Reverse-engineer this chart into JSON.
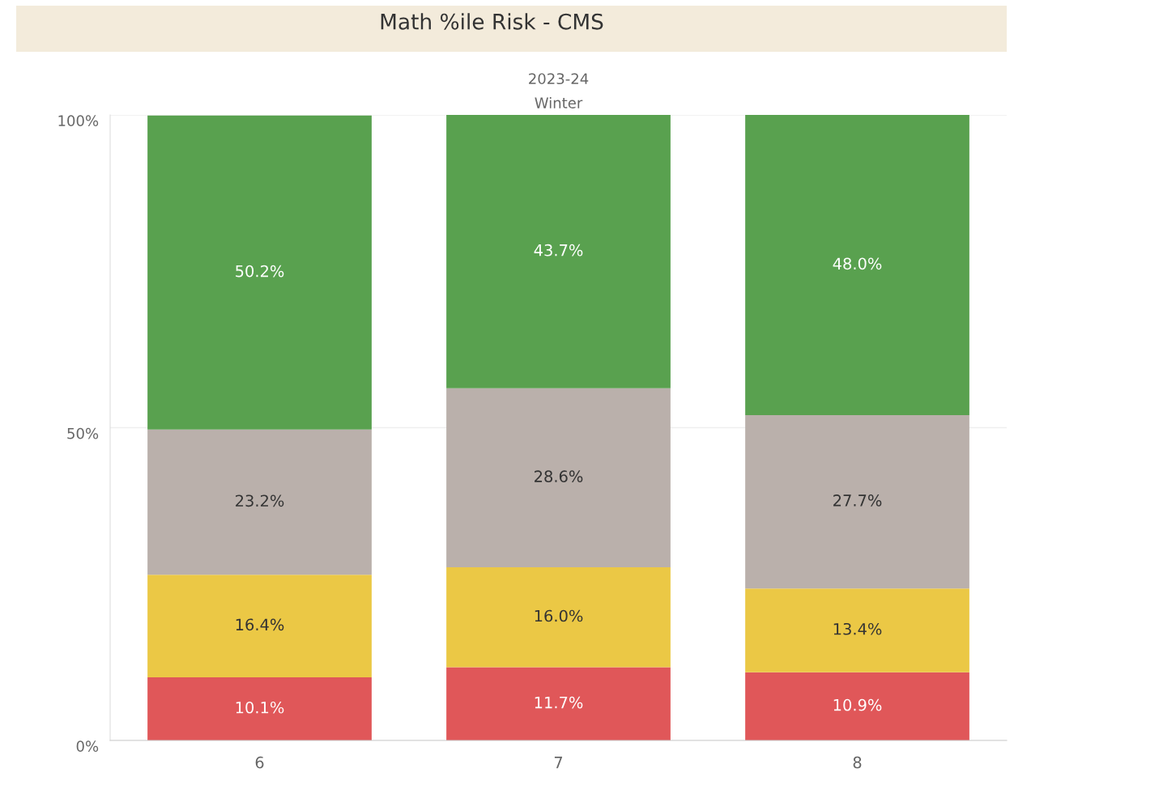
{
  "chart_data": {
    "type": "bar",
    "title": "Math %ile Risk - CMS",
    "subtitle": "2023-24\nWinter",
    "categories": [
      "6",
      "7",
      "8"
    ],
    "stacked": true,
    "data_labels": true,
    "grid": "y",
    "ylim": [
      0,
      100
    ],
    "yticks": [
      {
        "value": 0,
        "label": "0%"
      },
      {
        "value": 50,
        "label": "50%"
      },
      {
        "value": 100,
        "label": "100%"
      }
    ],
    "series": [
      {
        "color": "#e05759",
        "values": [
          10.1,
          11.7,
          10.9
        ],
        "value_labels": [
          "10.1%",
          "11.7%",
          "10.9%"
        ]
      },
      {
        "color": "#ebc845",
        "values": [
          16.4,
          16.0,
          13.4
        ],
        "value_labels": [
          "16.4%",
          "16.0%",
          "13.4%"
        ]
      },
      {
        "color": "#bab0ab",
        "values": [
          23.2,
          28.6,
          27.7
        ],
        "value_labels": [
          "23.2%",
          "28.6%",
          "27.7%"
        ]
      },
      {
        "color": "#59a14f",
        "values": [
          50.2,
          43.7,
          48.0
        ],
        "value_labels": [
          "50.2%",
          "43.7%",
          "48.0%"
        ]
      }
    ]
  }
}
